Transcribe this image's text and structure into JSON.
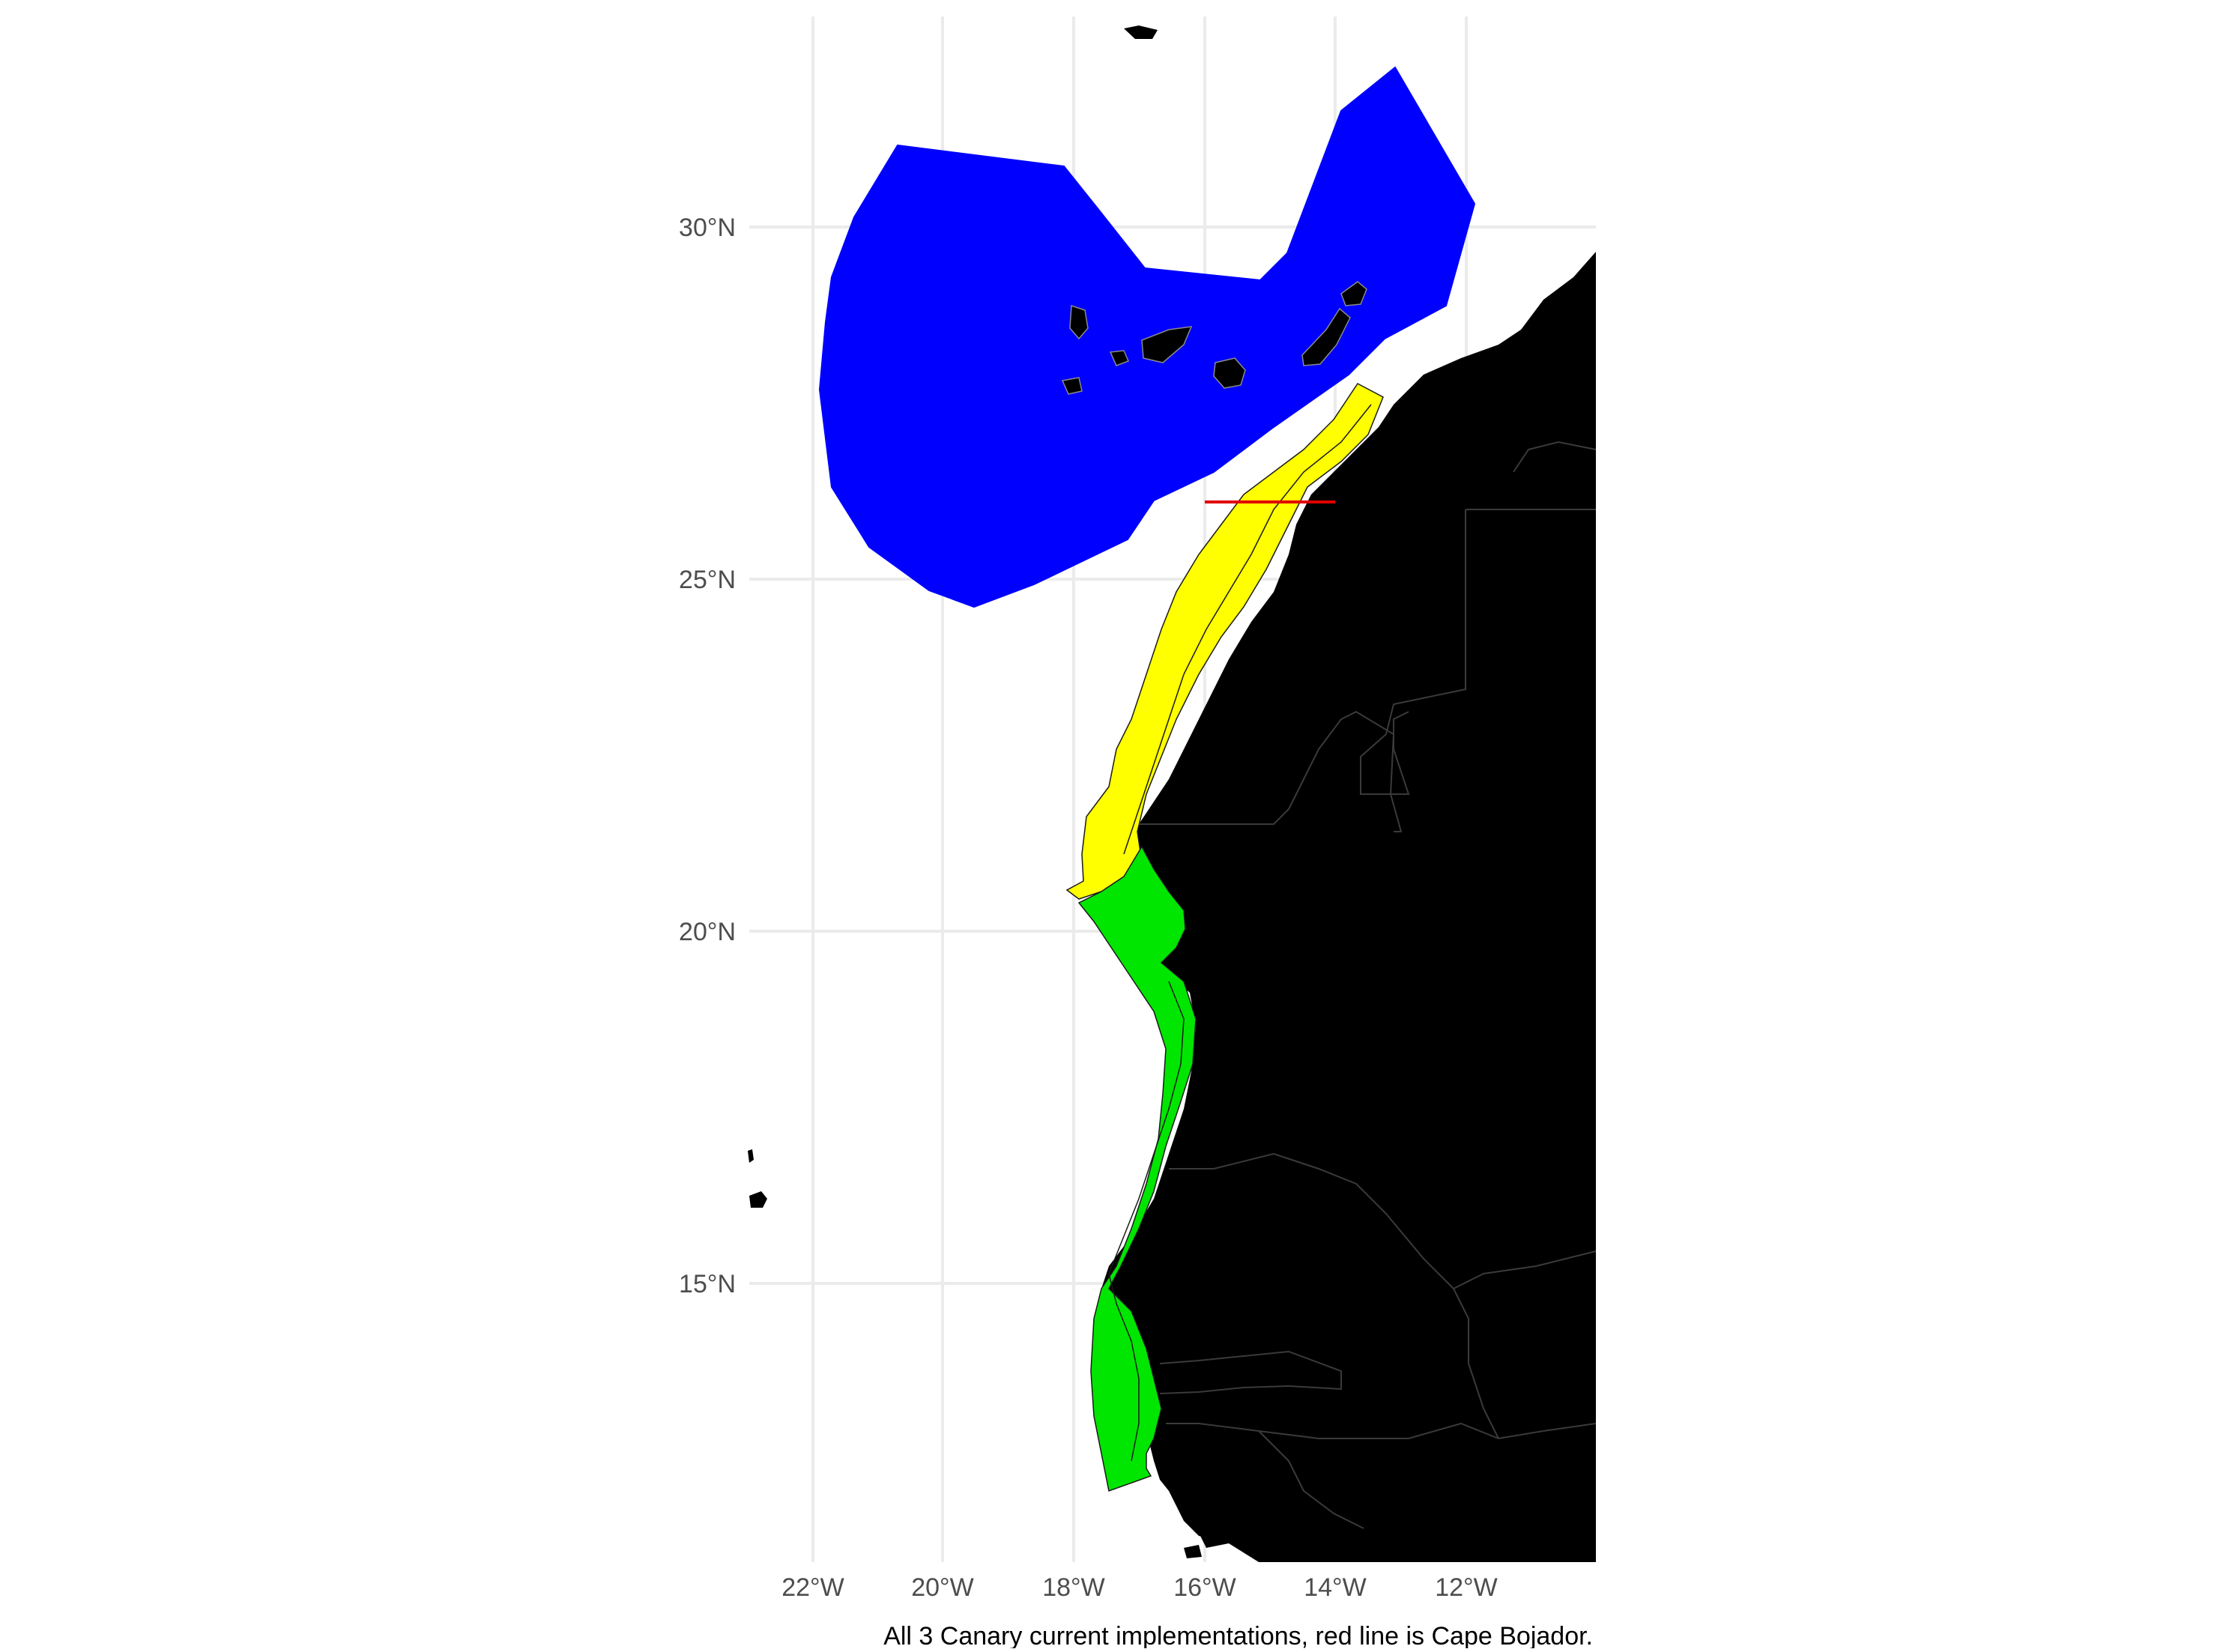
{
  "map": {
    "caption": "All 3 Canary current implementations, red line is Cape Bojador.",
    "x_axis_labels": [
      "22°W",
      "20°W",
      "18°W",
      "16°W",
      "14°W",
      "12°W"
    ],
    "y_axis_labels": [
      "30°N",
      "25°N",
      "20°N",
      "15°N"
    ],
    "x_range_deg_lon": [
      -23.1,
      -10.2
    ],
    "y_range_deg_lat": [
      11.0,
      33.0
    ],
    "grid": true,
    "colors": {
      "canary_islands_region": "#0000ff",
      "northern_coastal_region": "#ffff00",
      "southern_coastal_region": "#00e600",
      "land": "#000000",
      "borders": "#3a3a3a",
      "cape_bojador_line": "#e00000",
      "gridlines": "#ebebeb"
    },
    "cape_bojador": {
      "lat": 26.1,
      "lon_from": -16.0,
      "lon_to": -14.0
    }
  }
}
